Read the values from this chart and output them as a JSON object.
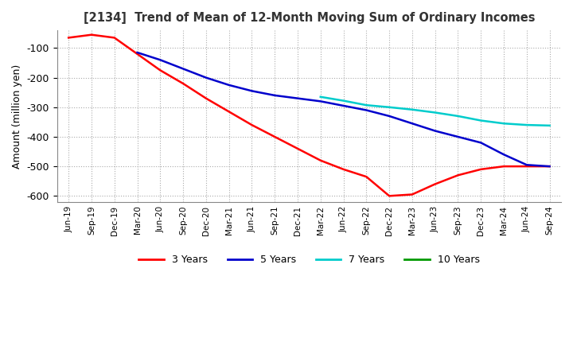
{
  "title": "[2134]  Trend of Mean of 12-Month Moving Sum of Ordinary Incomes",
  "ylabel": "Amount (million yen)",
  "ylim": [
    -620,
    -40
  ],
  "yticks": [
    -100,
    -200,
    -300,
    -400,
    -500,
    -600
  ],
  "background_color": "#ffffff",
  "plot_bg_color": "#ffffff",
  "grid_color": "#aaaaaa",
  "legend": [
    "3 Years",
    "5 Years",
    "7 Years",
    "10 Years"
  ],
  "line_colors": [
    "#ff0000",
    "#0000cc",
    "#00cccc",
    "#009900"
  ],
  "x_labels": [
    "Jun-19",
    "Sep-19",
    "Dec-19",
    "Mar-20",
    "Jun-20",
    "Sep-20",
    "Dec-20",
    "Mar-21",
    "Jun-21",
    "Sep-21",
    "Dec-21",
    "Mar-22",
    "Jun-22",
    "Sep-22",
    "Dec-22",
    "Mar-23",
    "Jun-23",
    "Sep-23",
    "Dec-23",
    "Mar-24",
    "Jun-24",
    "Sep-24"
  ],
  "series_3y": [
    -65,
    -55,
    -65,
    -120,
    -175,
    -220,
    -270,
    -315,
    -360,
    -400,
    -440,
    -480,
    -510,
    -535,
    -600,
    -595,
    -560,
    -530,
    -510,
    -500,
    -500,
    -500
  ],
  "series_5y": [
    null,
    null,
    null,
    -115,
    -140,
    -170,
    -200,
    -225,
    -245,
    -260,
    -270,
    -280,
    -295,
    -310,
    -330,
    -355,
    -380,
    -400,
    -420,
    -460,
    -495,
    -500
  ],
  "series_7y": [
    null,
    null,
    null,
    null,
    null,
    null,
    null,
    null,
    null,
    null,
    null,
    -265,
    -278,
    -293,
    -300,
    -308,
    -318,
    -330,
    -345,
    -355,
    -360,
    -362
  ],
  "series_10y": [
    null,
    null,
    null,
    null,
    null,
    null,
    null,
    null,
    null,
    null,
    null,
    null,
    null,
    null,
    null,
    null,
    null,
    null,
    null,
    null,
    null,
    null
  ]
}
